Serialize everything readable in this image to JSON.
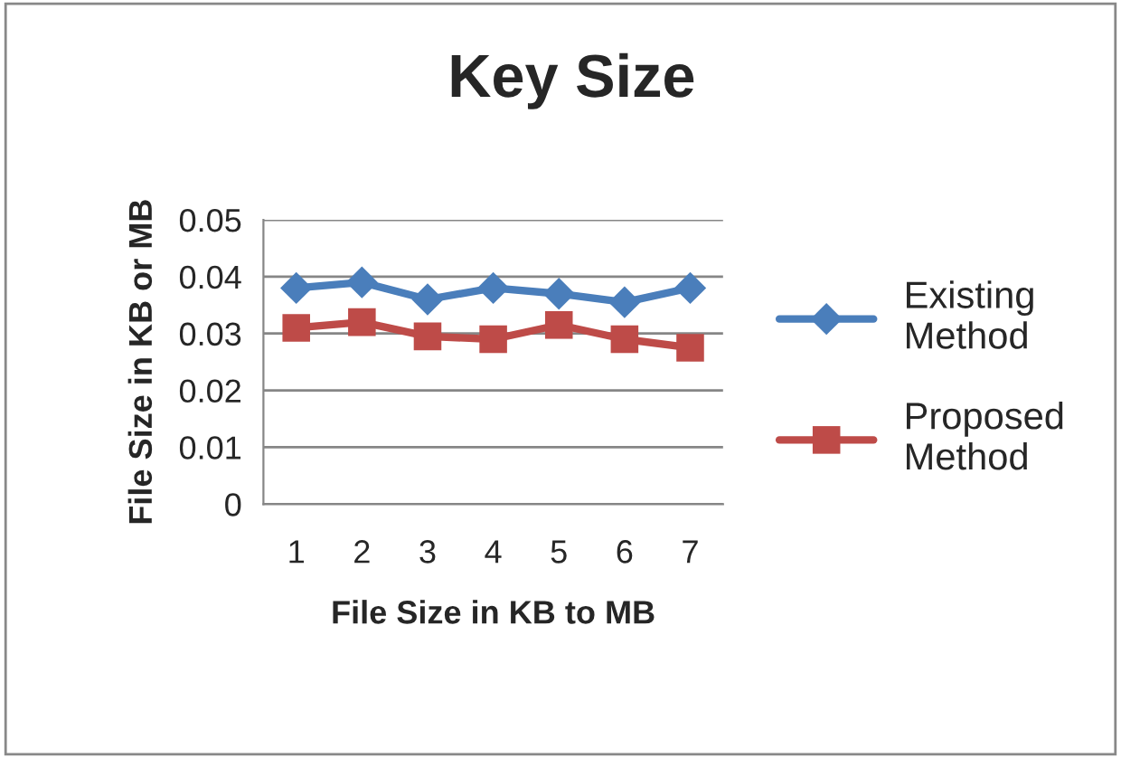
{
  "chart_data": {
    "type": "line",
    "title": "Key Size",
    "xlabel": "File Size in KB to MB",
    "ylabel": "File Size in KB or MB",
    "categories": [
      "1",
      "2",
      "3",
      "4",
      "5",
      "6",
      "7"
    ],
    "series": [
      {
        "name": "Existing Method",
        "color": "#4a7ebb",
        "marker": "diamond",
        "values": [
          0.038,
          0.039,
          0.036,
          0.038,
          0.037,
          0.0355,
          0.038
        ]
      },
      {
        "name": "Proposed Method",
        "color": "#be4b48",
        "marker": "square",
        "values": [
          0.031,
          0.032,
          0.0295,
          0.029,
          0.0315,
          0.029,
          0.0275
        ]
      }
    ],
    "ylim": [
      0,
      0.05
    ],
    "yticks": [
      {
        "value": 0,
        "label": "0"
      },
      0.01,
      0.02,
      0.03,
      0.04,
      0.05
    ],
    "grid": "y",
    "legend": "right",
    "line_style": "solid"
  }
}
